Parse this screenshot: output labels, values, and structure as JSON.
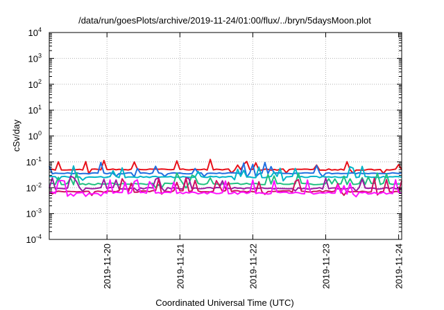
{
  "chart_data": {
    "type": "line",
    "title": "/data/run/goesPlots/archive/2019-11-24/01:00/flux/../bryn/5daysMoon.plot",
    "xlabel": "Coordinated Universal Time (UTC)",
    "ylabel": "cSv/day",
    "y_scale": "log",
    "ylim": [
      0.0001,
      10000
    ],
    "y_ticks": [
      {
        "value": 0.0001,
        "base": "10",
        "exp": "-4"
      },
      {
        "value": 0.001,
        "base": "10",
        "exp": "-3"
      },
      {
        "value": 0.01,
        "base": "10",
        "exp": "-2"
      },
      {
        "value": 0.1,
        "base": "10",
        "exp": "-1"
      },
      {
        "value": 1,
        "base": "10",
        "exp": "0"
      },
      {
        "value": 10,
        "base": "10",
        "exp": "1"
      },
      {
        "value": 100,
        "base": "10",
        "exp": "2"
      },
      {
        "value": 1000,
        "base": "10",
        "exp": "3"
      },
      {
        "value": 10000,
        "base": "10",
        "exp": "4"
      }
    ],
    "xlim": [
      "2019-11-19T05:00",
      "2019-11-24T01:00"
    ],
    "x_ticks": [
      {
        "value": "2019-11-20T00:00",
        "label": "2019-11-20"
      },
      {
        "value": "2019-11-21T00:00",
        "label": "2019-11-21"
      },
      {
        "value": "2019-11-22T00:00",
        "label": "2019-11-22"
      },
      {
        "value": "2019-11-23T00:00",
        "label": "2019-11-23"
      },
      {
        "value": "2019-11-24T00:00",
        "label": "2019-11-24"
      }
    ],
    "grid": true,
    "series": [
      {
        "color": "#e8101a",
        "base": 0.05,
        "jitter": 0.12,
        "spike": 0.4,
        "seed": 3
      },
      {
        "color": "#1f6fe0",
        "base": 0.036,
        "jitter": 0.1,
        "spike": 0.45,
        "seed": 7
      },
      {
        "color": "#00b4c8",
        "base": 0.026,
        "jitter": 0.12,
        "spike": 0.45,
        "seed": 11
      },
      {
        "color": "#20c080",
        "base": 0.014,
        "jitter": 0.15,
        "spike": 0.55,
        "seed": 13
      },
      {
        "color": "#9a1aa0",
        "base": 0.0095,
        "jitter": 0.15,
        "spike": 0.6,
        "seed": 17
      },
      {
        "color": "#d01060",
        "base": 0.0072,
        "jitter": 0.15,
        "spike": 0.6,
        "seed": 19
      },
      {
        "color": "#ff10ff",
        "base": 0.0062,
        "jitter": 0.2,
        "spike": 0.7,
        "seed": 23
      }
    ]
  }
}
